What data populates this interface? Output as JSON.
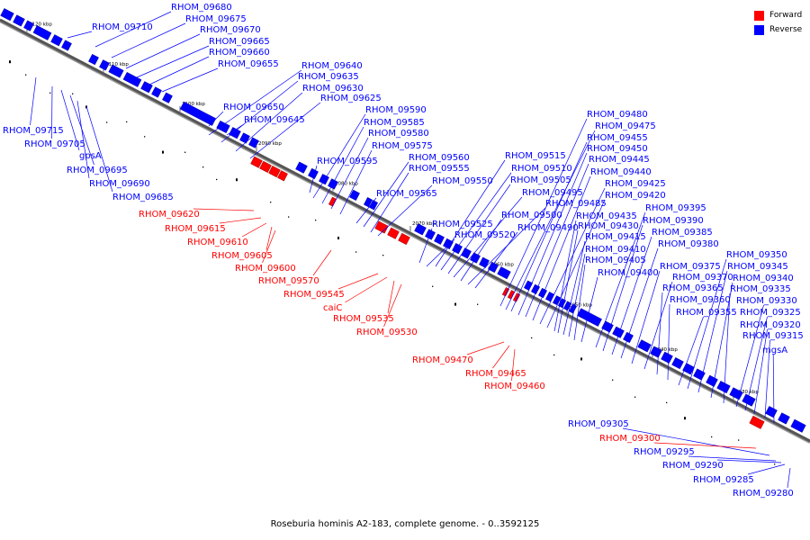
{
  "caption": "Roseburia hominis A2-183, complete genome. - 0..3592125",
  "legend": [
    {
      "label": "Forward",
      "color": "#ff0000"
    },
    {
      "label": "Reverse",
      "color": "#0000ff"
    }
  ],
  "colors": {
    "forward": "#ff0000",
    "reverse": "#0000ff",
    "backbone": "#555555"
  },
  "ticks": [
    "2120 kbp",
    "2110 kbp",
    "2100 kbp",
    "2090 kbp",
    "2080 kbp",
    "2070 kbp",
    "2060 kbp",
    "2050 kbp",
    "2040 kbp",
    "2030 kbp"
  ],
  "genes": [
    {
      "name": "RHOM_09680",
      "strand": "reverse"
    },
    {
      "name": "RHOM_09675",
      "strand": "reverse"
    },
    {
      "name": "RHOM_09670",
      "strand": "reverse"
    },
    {
      "name": "RHOM_09665",
      "strand": "reverse"
    },
    {
      "name": "RHOM_09660",
      "strand": "reverse"
    },
    {
      "name": "RHOM_09655",
      "strand": "reverse"
    },
    {
      "name": "RHOM_09710",
      "strand": "reverse"
    },
    {
      "name": "RHOM_09715",
      "strand": "reverse"
    },
    {
      "name": "RHOM_09705",
      "strand": "reverse"
    },
    {
      "name": "gpsA",
      "strand": "reverse"
    },
    {
      "name": "RHOM_09695",
      "strand": "reverse"
    },
    {
      "name": "RHOM_09690",
      "strand": "reverse"
    },
    {
      "name": "RHOM_09685",
      "strand": "reverse"
    },
    {
      "name": "RHOM_09640",
      "strand": "reverse"
    },
    {
      "name": "RHOM_09635",
      "strand": "reverse"
    },
    {
      "name": "RHOM_09630",
      "strand": "reverse"
    },
    {
      "name": "RHOM_09625",
      "strand": "reverse"
    },
    {
      "name": "RHOM_09650",
      "strand": "reverse"
    },
    {
      "name": "RHOM_09645",
      "strand": "reverse"
    },
    {
      "name": "RHOM_09590",
      "strand": "reverse"
    },
    {
      "name": "RHOM_09585",
      "strand": "reverse"
    },
    {
      "name": "RHOM_09580",
      "strand": "reverse"
    },
    {
      "name": "RHOM_09575",
      "strand": "reverse"
    },
    {
      "name": "RHOM_09595",
      "strand": "reverse"
    },
    {
      "name": "RHOM_09560",
      "strand": "reverse"
    },
    {
      "name": "RHOM_09555",
      "strand": "reverse"
    },
    {
      "name": "RHOM_09550",
      "strand": "reverse"
    },
    {
      "name": "RHOM_09565",
      "strand": "reverse"
    },
    {
      "name": "RHOM_09620",
      "strand": "forward"
    },
    {
      "name": "RHOM_09615",
      "strand": "forward"
    },
    {
      "name": "RHOM_09610",
      "strand": "forward"
    },
    {
      "name": "RHOM_09605",
      "strand": "forward"
    },
    {
      "name": "RHOM_09600",
      "strand": "forward"
    },
    {
      "name": "RHOM_09570",
      "strand": "forward"
    },
    {
      "name": "RHOM_09545",
      "strand": "forward"
    },
    {
      "name": "caiC",
      "strand": "forward"
    },
    {
      "name": "RHOM_09535",
      "strand": "forward"
    },
    {
      "name": "RHOM_09530",
      "strand": "forward"
    },
    {
      "name": "RHOM_09470",
      "strand": "forward"
    },
    {
      "name": "RHOM_09465",
      "strand": "forward"
    },
    {
      "name": "RHOM_09460",
      "strand": "forward"
    },
    {
      "name": "RHOM_09515",
      "strand": "reverse"
    },
    {
      "name": "RHOM_09510",
      "strand": "reverse"
    },
    {
      "name": "RHOM_09505",
      "strand": "reverse"
    },
    {
      "name": "RHOM_09495",
      "strand": "reverse"
    },
    {
      "name": "RHOM_09485",
      "strand": "reverse"
    },
    {
      "name": "RHOM_09500",
      "strand": "reverse"
    },
    {
      "name": "RHOM_09490",
      "strand": "reverse"
    },
    {
      "name": "RHOM_09525",
      "strand": "reverse"
    },
    {
      "name": "RHOM_09520",
      "strand": "reverse"
    },
    {
      "name": "RHOM_09480",
      "strand": "reverse"
    },
    {
      "name": "RHOM_09475",
      "strand": "reverse"
    },
    {
      "name": "RHOM_09455",
      "strand": "reverse"
    },
    {
      "name": "RHOM_09450",
      "strand": "reverse"
    },
    {
      "name": "RHOM_09445",
      "strand": "reverse"
    },
    {
      "name": "RHOM_09440",
      "strand": "reverse"
    },
    {
      "name": "RHOM_09425",
      "strand": "reverse"
    },
    {
      "name": "RHOM_09420",
      "strand": "reverse"
    },
    {
      "name": "RHOM_09435",
      "strand": "reverse"
    },
    {
      "name": "RHOM_09430",
      "strand": "reverse"
    },
    {
      "name": "RHOM_09415",
      "strand": "reverse"
    },
    {
      "name": "RHOM_09410",
      "strand": "reverse"
    },
    {
      "name": "RHOM_09405",
      "strand": "reverse"
    },
    {
      "name": "RHOM_09400",
      "strand": "reverse"
    },
    {
      "name": "RHOM_09395",
      "strand": "reverse"
    },
    {
      "name": "RHOM_09390",
      "strand": "reverse"
    },
    {
      "name": "RHOM_09385",
      "strand": "reverse"
    },
    {
      "name": "RHOM_09380",
      "strand": "reverse"
    },
    {
      "name": "RHOM_09375",
      "strand": "reverse"
    },
    {
      "name": "RHOM_09370",
      "strand": "reverse"
    },
    {
      "name": "RHOM_09365",
      "strand": "reverse"
    },
    {
      "name": "RHOM_09360",
      "strand": "reverse"
    },
    {
      "name": "RHOM_09355",
      "strand": "reverse"
    },
    {
      "name": "RHOM_09350",
      "strand": "reverse"
    },
    {
      "name": "RHOM_09345",
      "strand": "reverse"
    },
    {
      "name": "RHOM_09340",
      "strand": "reverse"
    },
    {
      "name": "RHOM_09335",
      "strand": "reverse"
    },
    {
      "name": "RHOM_09330",
      "strand": "reverse"
    },
    {
      "name": "RHOM_09325",
      "strand": "reverse"
    },
    {
      "name": "RHOM_09320",
      "strand": "reverse"
    },
    {
      "name": "RHOM_09315",
      "strand": "reverse"
    },
    {
      "name": "mgsA",
      "strand": "reverse"
    },
    {
      "name": "RHOM_09305",
      "strand": "reverse"
    },
    {
      "name": "RHOM_09300",
      "strand": "forward"
    },
    {
      "name": "RHOM_09295",
      "strand": "reverse"
    },
    {
      "name": "RHOM_09290",
      "strand": "reverse"
    },
    {
      "name": "RHOM_09285",
      "strand": "reverse"
    },
    {
      "name": "RHOM_09280",
      "strand": "reverse"
    }
  ]
}
